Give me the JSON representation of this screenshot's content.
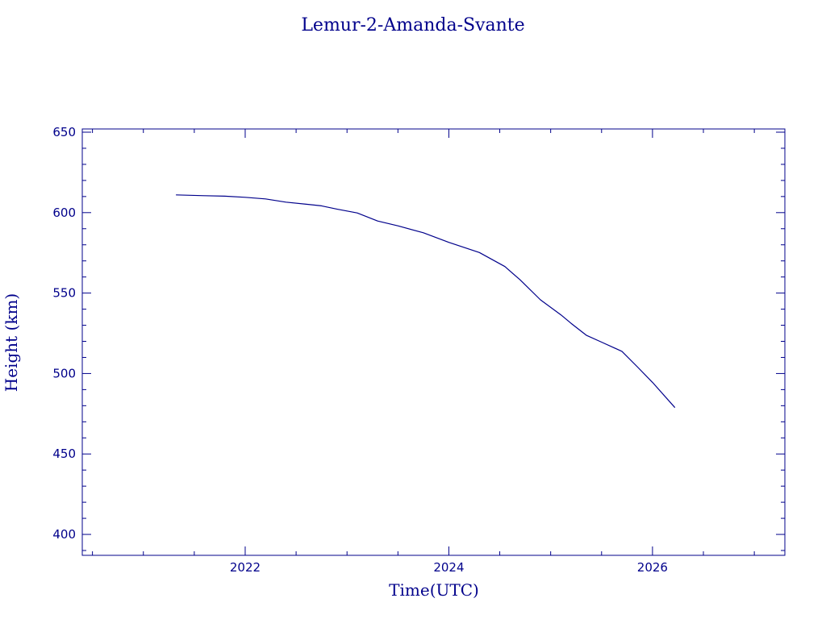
{
  "chart_data": {
    "type": "line",
    "title": "Lemur-2-Amanda-Svante",
    "xlabel": "Time(UTC)",
    "ylabel": "Height (km)",
    "xlim": [
      2020.4,
      2027.3
    ],
    "ylim": [
      387,
      652
    ],
    "x_ticks": [
      2022,
      2024,
      2026
    ],
    "x_tick_labels": [
      "2022",
      "2024",
      "2026"
    ],
    "y_ticks": [
      400,
      450,
      500,
      550,
      600,
      650
    ],
    "y_tick_labels": [
      "400",
      "450",
      "500",
      "550",
      "600",
      "650"
    ],
    "grid": false,
    "legend": "none",
    "colors": {
      "axis": "#00008b",
      "series": "#00008b"
    },
    "series": [
      {
        "x": [
          2021.32,
          2021.6,
          2021.8,
          2022.0,
          2022.2,
          2022.4,
          2022.6,
          2022.75,
          2022.9,
          2023.1,
          2023.3,
          2023.5,
          2023.75,
          2024.0,
          2024.3,
          2024.55,
          2024.7,
          2024.9,
          2025.1,
          2025.2,
          2025.35,
          2025.5,
          2025.7,
          2025.85,
          2026.0,
          2026.22
        ],
        "y": [
          611,
          610.5,
          610.2,
          609.5,
          608.5,
          606.5,
          605.2,
          604.2,
          602.2,
          599.8,
          594.8,
          591.8,
          587.5,
          581.5,
          575.2,
          566.5,
          558.2,
          545.8,
          536.5,
          531.2,
          523.8,
          519.5,
          513.8,
          504.2,
          494.5,
          478.8
        ]
      }
    ]
  }
}
